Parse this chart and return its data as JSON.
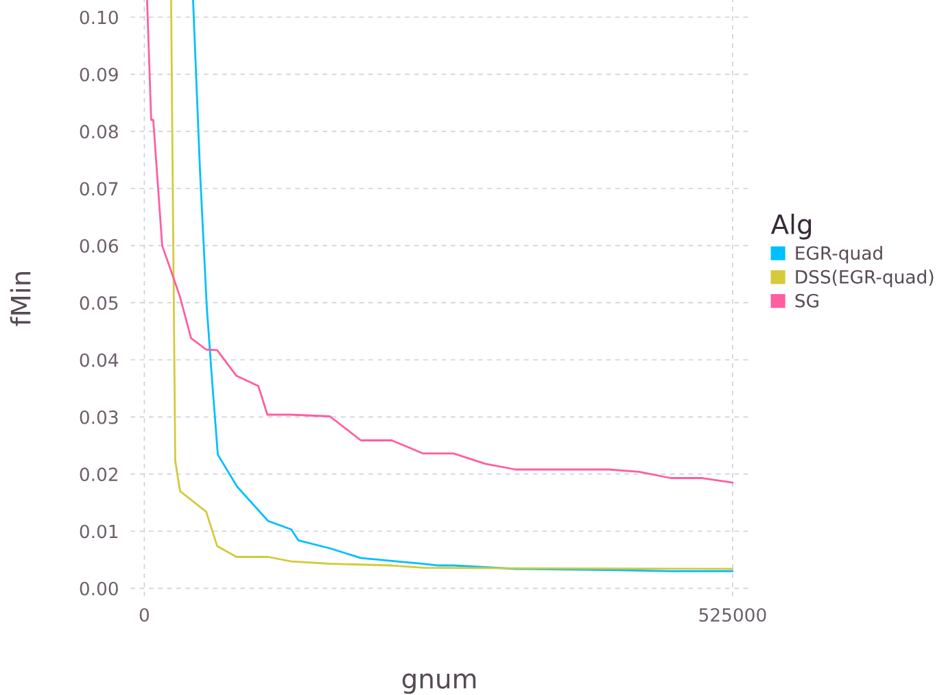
{
  "chart_data": {
    "type": "line",
    "xlabel": "gnum",
    "ylabel": "fMin",
    "legend_title": "Alg",
    "legend": "right",
    "grid": true,
    "line_style": "solid",
    "marker": "none",
    "xlim": [
      -12300,
      539000
    ],
    "xticks": [
      0,
      525000
    ],
    "ylim": [
      -0.0014,
      0.103
    ],
    "yticks": [
      {
        "value": 0,
        "label": "0.00"
      },
      {
        "value": 0.01,
        "label": "0.01"
      },
      {
        "value": 0.02,
        "label": "0.02"
      },
      {
        "value": 0.03,
        "label": "0.03"
      },
      {
        "value": 0.04,
        "label": "0.04"
      },
      {
        "value": 0.05,
        "label": "0.05"
      },
      {
        "value": 0.06,
        "label": "0.06"
      },
      {
        "value": 0.07,
        "label": "0.07"
      },
      {
        "value": 0.08,
        "label": "0.08"
      },
      {
        "value": 0.09,
        "label": "0.09"
      },
      {
        "value": 0.1,
        "label": "0.10"
      }
    ],
    "series": [
      {
        "name": "EGR-quad",
        "color": "#00bfff",
        "x": [
          43500,
          49700,
          55800,
          60700,
          65600,
          82800,
          110400,
          131200,
          137400,
          165600,
          193200,
          220800,
          249000,
          262500,
          276000,
          331200,
          414600,
          469800,
          525000
        ],
        "values": [
          0.103,
          0.073,
          0.049,
          0.0358,
          0.0234,
          0.0178,
          0.0118,
          0.0103,
          0.0084,
          0.007,
          0.0053,
          0.0048,
          0.0043,
          0.004,
          0.004,
          0.0034,
          0.0032,
          0.003,
          0.003
        ]
      },
      {
        "name": "DSS(EGR-quad)",
        "color": "#d4ca3a",
        "x": [
          23900,
          25800,
          27600,
          31900,
          55200,
          65000,
          82200,
          110400,
          131200,
          165600,
          220800,
          249000,
          331200,
          525000
        ],
        "values": [
          0.103,
          0.061,
          0.0223,
          0.017,
          0.0134,
          0.0074,
          0.0055,
          0.0055,
          0.0047,
          0.0043,
          0.004,
          0.0036,
          0.0035,
          0.0034
        ]
      },
      {
        "name": "SG",
        "color": "#ff5ea0",
        "x": [
          2450,
          6130,
          7970,
          15950,
          26980,
          31880,
          41700,
          55200,
          65000,
          82200,
          101800,
          109800,
          130600,
          165600,
          193200,
          220800,
          249000,
          276000,
          304200,
          331200,
          414600,
          441600,
          469800,
          498000,
          525000
        ],
        "values": [
          0.103,
          0.082,
          0.082,
          0.06,
          0.0538,
          0.051,
          0.0438,
          0.0418,
          0.0417,
          0.0372,
          0.0354,
          0.0304,
          0.0304,
          0.0301,
          0.0259,
          0.0259,
          0.0236,
          0.0236,
          0.0218,
          0.0208,
          0.0208,
          0.0204,
          0.0193,
          0.0193,
          0.0185
        ]
      }
    ]
  }
}
